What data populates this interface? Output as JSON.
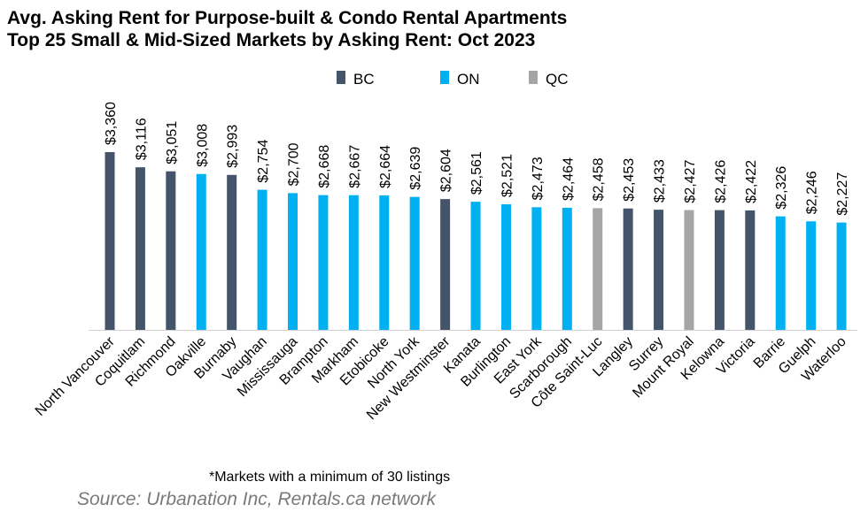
{
  "chart_data": {
    "type": "bar",
    "title": "Avg. Asking Rent for Purpose-built & Condo Rental Apartments",
    "subtitle": "Top 25 Small & Mid-Sized Markets by Asking Rent: Oct 2023",
    "categories": [
      "North Vancouver",
      "Coquitlam",
      "Richmond",
      "Oakville",
      "Burnaby",
      "Vaughan",
      "Mississauga",
      "Brampton",
      "Markham",
      "Etobicoke",
      "North York",
      "New Westminster",
      "Kanata",
      "Burlington",
      "East York",
      "Scarborough",
      "Côte Saint-Luc",
      "Langley",
      "Surrey",
      "Mount Royal",
      "Kelowna",
      "Victoria",
      "Barrie",
      "Guelph",
      "Waterloo"
    ],
    "values": [
      3360,
      3116,
      3051,
      3008,
      2993,
      2754,
      2700,
      2668,
      2667,
      2664,
      2639,
      2604,
      2561,
      2521,
      2473,
      2464,
      2458,
      2453,
      2433,
      2427,
      2426,
      2422,
      2326,
      2246,
      2227
    ],
    "data_labels": [
      "$3,360",
      "$3,116",
      "$3,051",
      "$3,008",
      "$2,993",
      "$2,754",
      "$2,700",
      "$2,668",
      "$2,667",
      "$2,664",
      "$2,639",
      "$2,604",
      "$2,561",
      "$2,521",
      "$2,473",
      "$2,464",
      "$2,458",
      "$2,453",
      "$2,433",
      "$2,427",
      "$2,426",
      "$2,422",
      "$2,326",
      "$2,246",
      "$2,227"
    ],
    "province": [
      "BC",
      "BC",
      "BC",
      "ON",
      "BC",
      "ON",
      "ON",
      "ON",
      "ON",
      "ON",
      "ON",
      "BC",
      "ON",
      "ON",
      "ON",
      "ON",
      "QC",
      "BC",
      "BC",
      "QC",
      "BC",
      "BC",
      "ON",
      "ON",
      "ON"
    ],
    "legend": [
      {
        "name": "BC",
        "color": "#44546A"
      },
      {
        "name": "ON",
        "color": "#00B0F0"
      },
      {
        "name": "QC",
        "color": "#A5A5A5"
      }
    ],
    "legend_position": "top",
    "xlabel": "",
    "ylabel": "",
    "ylim": [
      500,
      4000
    ],
    "grid": false,
    "y_axis_visible": false
  },
  "footnote": "*Markets with a minimum of 30 listings",
  "source": "Source: Urbanation Inc, Rentals.ca network"
}
